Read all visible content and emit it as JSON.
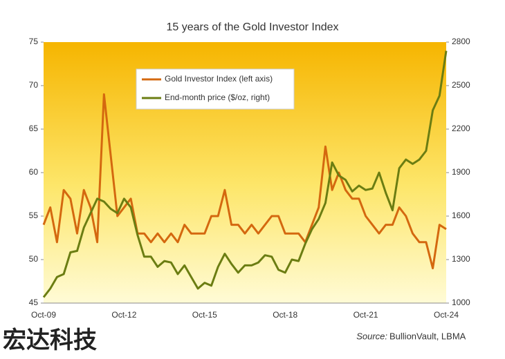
{
  "chart_data": {
    "type": "line",
    "title": "15 years of the Gold Investor Index",
    "source_label": "Source:",
    "source": "BullionVault, LBMA",
    "watermark": "宏达科技",
    "categories": [
      "Oct-09",
      null,
      null,
      null,
      null,
      null,
      null,
      null,
      null,
      null,
      null,
      null,
      "Oct-12",
      null,
      null,
      null,
      null,
      null,
      null,
      null,
      null,
      null,
      null,
      null,
      "Oct-15",
      null,
      null,
      null,
      null,
      null,
      null,
      null,
      null,
      null,
      null,
      null,
      "Oct-18",
      null,
      null,
      null,
      null,
      null,
      null,
      null,
      null,
      null,
      null,
      null,
      "Oct-21",
      null,
      null,
      null,
      null,
      null,
      null,
      null,
      null,
      null,
      null,
      null,
      "Oct-24"
    ],
    "series": [
      {
        "name": "Gold Investor Index (left axis)",
        "color": "#d4680f",
        "axis": "y",
        "values": [
          54,
          56,
          52,
          58,
          57,
          53,
          58,
          56,
          52,
          69,
          62,
          55,
          56,
          57,
          53,
          53,
          52,
          53,
          52,
          53,
          52,
          54,
          53,
          53,
          53,
          55,
          55,
          58,
          54,
          54,
          53,
          54,
          53,
          54,
          55,
          55,
          53,
          53,
          53,
          52,
          54,
          56,
          63,
          58,
          60,
          58,
          57,
          57,
          55,
          54,
          53,
          54,
          54,
          56,
          55,
          53,
          52,
          52,
          49,
          54,
          53.5
        ]
      },
      {
        "name": "End-month price ($/oz, right)",
        "color": "#6b7d12",
        "axis": "y2",
        "values": [
          1040,
          1100,
          1180,
          1200,
          1350,
          1360,
          1520,
          1620,
          1720,
          1700,
          1650,
          1620,
          1720,
          1660,
          1470,
          1320,
          1320,
          1250,
          1290,
          1280,
          1200,
          1260,
          1180,
          1100,
          1140,
          1120,
          1250,
          1340,
          1270,
          1210,
          1260,
          1260,
          1280,
          1330,
          1320,
          1230,
          1210,
          1300,
          1290,
          1410,
          1510,
          1580,
          1690,
          1970,
          1880,
          1850,
          1770,
          1810,
          1780,
          1790,
          1900,
          1760,
          1640,
          1930,
          1990,
          1960,
          1990,
          2050,
          2330,
          2430,
          2740
        ]
      }
    ],
    "ylim": [
      45,
      75
    ],
    "yticks": [
      45,
      50,
      55,
      60,
      65,
      70,
      75
    ],
    "y2lim": [
      1000,
      2800
    ],
    "y2ticks": [
      1000,
      1300,
      1600,
      1900,
      2200,
      2500,
      2800
    ],
    "legend": "top"
  }
}
